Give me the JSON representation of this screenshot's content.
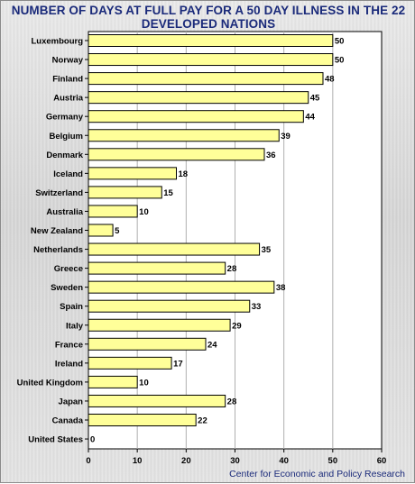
{
  "chart_data": {
    "type": "bar",
    "orientation": "horizontal",
    "title_line1": "NUMBER OF DAYS AT FULL PAY FOR A 50 DAY ILLNESS IN THE 22",
    "title_line2": "DEVELOPED NATIONS",
    "categories": [
      "Luxembourg",
      "Norway",
      "Finland",
      "Austria",
      "Germany",
      "Belgium",
      "Denmark",
      "Iceland",
      "Switzerland",
      "Australia",
      "New Zealand",
      "Netherlands",
      "Greece",
      "Sweden",
      "Spain",
      "Italy",
      "France",
      "Ireland",
      "United Kingdom",
      "Japan",
      "Canada",
      "United States"
    ],
    "values": [
      50,
      50,
      48,
      45,
      44,
      39,
      36,
      18,
      15,
      10,
      5,
      35,
      28,
      38,
      33,
      29,
      24,
      17,
      10,
      28,
      22,
      0
    ],
    "xlim": [
      0,
      60
    ],
    "xticks": [
      0,
      10,
      20,
      30,
      40,
      50,
      60
    ],
    "grid": true,
    "bar_color": "#ffff99"
  },
  "source": "Center for Economic and Policy Research"
}
